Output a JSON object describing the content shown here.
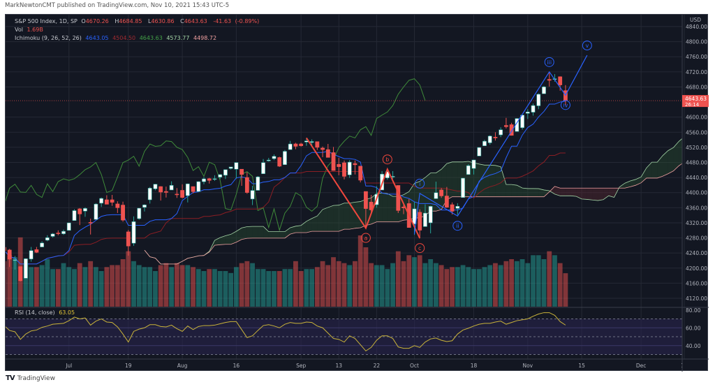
{
  "published": "MarkNewtonCMT published on TradingView.com, Nov 10, 2021 15:43 UTC-5",
  "header": {
    "symbol": "S&P 500 Index, 1D, SP",
    "o_label": "O",
    "o": "4670.26",
    "h_label": "H",
    "h": "4684.85",
    "l_label": "L",
    "l": "4630.86",
    "c_label": "C",
    "c": "4643.63",
    "change": "-41.63",
    "change_pct": "(-0.89%)",
    "vol_label": "Vol",
    "vol": "1.69B",
    "ichimoku_label": "Ichimoku (9, 26, 52, 26)",
    "ichimoku_values": [
      "4643.05",
      "4504.50",
      "4643.63",
      "4573.77",
      "4498.72"
    ],
    "rsi_label": "RSI (14, close)",
    "rsi_value": "63.05"
  },
  "colors": {
    "background": "#131722",
    "up": "#ffffff",
    "up_border": "#26a69a",
    "down": "#ef5350",
    "vol_up": "#26a69a",
    "vol_down": "#ef5350",
    "tenkan": "#2962ff",
    "kijun": "#8b1e24",
    "chikou": "#3f8a3a",
    "span_a": "#a5d6a7",
    "span_b": "#f0a0a0",
    "rsi": "#c9b33a",
    "wave_abc": "#f0473d",
    "wave_impulse": "#2962ff"
  },
  "price_axis": {
    "currency": "USD",
    "ticks": [
      "4840.00",
      "4800.00",
      "4760.00",
      "4720.00",
      "4680.00",
      "4600.00",
      "4560.00",
      "4520.00",
      "4480.00",
      "4440.00",
      "4400.00",
      "4360.00",
      "4320.00",
      "4280.00",
      "4240.00",
      "4200.00",
      "4160.00",
      "4120.00"
    ],
    "last_price": "4643.63",
    "countdown": "26:14"
  },
  "rsi_axis": {
    "ticks": [
      "80.00",
      "60.00",
      "40.00"
    ],
    "bands": [
      70,
      50,
      30
    ]
  },
  "time_axis": [
    {
      "label": "Jul",
      "index": 12
    },
    {
      "label": "19",
      "index": 23
    },
    {
      "label": "Aug",
      "index": 33
    },
    {
      "label": "16",
      "index": 43
    },
    {
      "label": "Sep",
      "index": 55
    },
    {
      "label": "13",
      "index": 62
    },
    {
      "label": "22",
      "index": 69
    },
    {
      "label": "Oct",
      "index": 76
    },
    {
      "label": "18",
      "index": 87
    },
    {
      "label": "Nov",
      "index": 97
    },
    {
      "label": "15",
      "index": 107
    },
    {
      "label": "Dec",
      "index": 118
    },
    {
      "label": "13",
      "index": 126
    }
  ],
  "chart_data": {
    "type": "candlestick",
    "title": "S&P 500 Index, 1D, SP",
    "ylim": [
      4100,
      4860
    ],
    "columns": [
      "date",
      "open",
      "high",
      "low",
      "close"
    ],
    "candles": [
      [
        "Jun 15",
        4255,
        4257,
        4238,
        4246.6
      ],
      [
        "Jun 16",
        4248,
        4251,
        4203,
        4223.7
      ],
      [
        "Jun 17",
        4220,
        4232,
        4196,
        4221.9
      ],
      [
        "Jun 18",
        4204,
        4204,
        4165,
        4166.5
      ],
      [
        "Jun 21",
        4173,
        4226,
        4173,
        4224.8
      ],
      [
        "Jun 22",
        4224,
        4256,
        4217,
        4246.4
      ],
      [
        "Jun 23",
        4249,
        4256,
        4240,
        4241.8
      ],
      [
        "Jun 24",
        4256,
        4271,
        4256,
        4266.5
      ],
      [
        "Jun 25",
        4274,
        4287,
        4271,
        4280.7
      ],
      [
        "Jun 28",
        4284,
        4293,
        4281,
        4290.6
      ],
      [
        "Jun 29",
        4293,
        4300,
        4287,
        4291.8
      ],
      [
        "Jun 30",
        4291,
        4302,
        4288,
        4297.5
      ],
      [
        "Jul 1",
        4300,
        4320,
        4300,
        4319.9
      ],
      [
        "Jul 2",
        4326,
        4356,
        4326,
        4352.3
      ],
      [
        "Jul 6",
        4357,
        4359,
        4314,
        4343.5
      ],
      [
        "Jul 7",
        4351,
        4361,
        4336,
        4358.1
      ],
      [
        "Jul 8",
        4321,
        4331,
        4289,
        4320.8
      ],
      [
        "Jul 9",
        4329,
        4372,
        4329,
        4369.6
      ],
      [
        "Jul 12",
        4372,
        4387,
        4362,
        4384.6
      ],
      [
        "Jul 13",
        4381,
        4393,
        4369,
        4369.2
      ],
      [
        "Jul 14",
        4381,
        4394,
        4365,
        4374.3
      ],
      [
        "Jul 15",
        4370,
        4377,
        4346,
        4360.0
      ],
      [
        "Jul 16",
        4367,
        4376,
        4323,
        4327.2
      ],
      [
        "Jul 19",
        4296,
        4301,
        4233,
        4258.5
      ],
      [
        "Jul 20",
        4266,
        4337,
        4259,
        4323.1
      ],
      [
        "Jul 21",
        4331,
        4359,
        4328,
        4358.7
      ],
      [
        "Jul 22",
        4361,
        4369,
        4350,
        4367.5
      ],
      [
        "Jul 23",
        4381,
        4415,
        4371,
        4411.8
      ],
      [
        "Jul 26",
        4410,
        4423,
        4406,
        4422.3
      ],
      [
        "Jul 27",
        4416,
        4417,
        4379,
        4401.5
      ],
      [
        "Jul 28",
        4403,
        4416,
        4387,
        4400.6
      ],
      [
        "Jul 29",
        4407,
        4430,
        4407,
        4419.2
      ],
      [
        "Jul 30",
        4396,
        4412,
        4386,
        4395.3
      ],
      [
        "Aug 2",
        4406,
        4422,
        4385,
        4387.2
      ],
      [
        "Aug 3",
        4392,
        4424,
        4374,
        4423.2
      ],
      [
        "Aug 4",
        4416,
        4416,
        4398,
        4402.7
      ],
      [
        "Aug 5",
        4403,
        4430,
        4403,
        4429.1
      ],
      [
        "Aug 6",
        4429,
        4441,
        4422,
        4436.5
      ],
      [
        "Aug 9",
        4437,
        4439,
        4424,
        4432.4
      ],
      [
        "Aug 10",
        4435,
        4446,
        4431,
        4436.8
      ],
      [
        "Aug 11",
        4441,
        4449,
        4436,
        4447.7
      ],
      [
        "Aug 12",
        4446,
        4461,
        4436,
        4460.8
      ],
      [
        "Aug 13",
        4464,
        4468,
        4461,
        4468.0
      ],
      [
        "Aug 16",
        4462,
        4480,
        4437,
        4479.7
      ],
      [
        "Aug 17",
        4462,
        4462,
        4418,
        4448.1
      ],
      [
        "Aug 18",
        4440,
        4454,
        4397,
        4400.3
      ],
      [
        "Aug 19",
        4383,
        4418,
        4367,
        4405.8
      ],
      [
        "Aug 20",
        4406,
        4444,
        4406,
        4441.7
      ],
      [
        "Aug 23",
        4450,
        4489,
        4450,
        4479.5
      ],
      [
        "Aug 24",
        4484,
        4492,
        4482,
        4486.2
      ],
      [
        "Aug 25",
        4490,
        4501,
        4486,
        4496.2
      ],
      [
        "Aug 26",
        4493,
        4495,
        4468,
        4470.0
      ],
      [
        "Aug 27",
        4474,
        4513,
        4474,
        4509.4
      ],
      [
        "Aug 30",
        4514,
        4537,
        4514,
        4528.8
      ],
      [
        "Aug 31",
        4529,
        4532,
        4515,
        4522.7
      ],
      [
        "Sep 1",
        4529,
        4532,
        4522,
        4524.1
      ],
      [
        "Sep 2",
        4534,
        4545,
        4524,
        4537.0
      ],
      [
        "Sep 3",
        4533,
        4541,
        4525,
        4535.4
      ],
      [
        "Sep 7",
        4535,
        4535,
        4513,
        4520.0
      ],
      [
        "Sep 8",
        4518,
        4522,
        4494,
        4514.1
      ],
      [
        "Sep 9",
        4514,
        4529,
        4493,
        4493.3
      ],
      [
        "Sep 10",
        4506,
        4521,
        4458,
        4458.6
      ],
      [
        "Sep 13",
        4475,
        4492,
        4446,
        4468.7
      ],
      [
        "Sep 14",
        4479,
        4485,
        4435,
        4443.1
      ],
      [
        "Sep 15",
        4447,
        4486,
        4439,
        4480.7
      ],
      [
        "Sep 16",
        4477,
        4485,
        4448,
        4473.8
      ],
      [
        "Sep 17",
        4470,
        4471,
        4427,
        4433.0
      ],
      [
        "Sep 20",
        4403,
        4403,
        4306,
        4357.7
      ],
      [
        "Sep 21",
        4375,
        4394,
        4348,
        4354.2
      ],
      [
        "Sep 22",
        4368,
        4417,
        4360,
        4395.6
      ],
      [
        "Sep 23",
        4407,
        4457,
        4407,
        4449.0
      ],
      [
        "Sep 24",
        4439,
        4463,
        4434,
        4455.5
      ],
      [
        "Sep 27",
        4442,
        4457,
        4437,
        4443.1
      ],
      [
        "Sep 28",
        4419,
        4419,
        4346,
        4352.6
      ],
      [
        "Sep 29",
        4362,
        4370,
        4343,
        4359.5
      ],
      [
        "Sep 30",
        4371,
        4383,
        4307,
        4307.5
      ],
      [
        "Oct 1",
        4317,
        4375,
        4288,
        4357.0
      ],
      [
        "Oct 4",
        4348,
        4356,
        4279,
        4300.5
      ],
      [
        "Oct 5",
        4310,
        4369,
        4310,
        4345.7
      ],
      [
        "Oct 6",
        4320,
        4365,
        4292,
        4363.6
      ],
      [
        "Oct 7",
        4384,
        4429,
        4384,
        4399.8
      ],
      [
        "Oct 8",
        4407,
        4412,
        4386,
        4391.3
      ],
      [
        "Oct 11",
        4391,
        4415,
        4360,
        4361.2
      ],
      [
        "Oct 12",
        4368,
        4374,
        4342,
        4350.7
      ],
      [
        "Oct 13",
        4358,
        4372,
        4341,
        4363.8
      ],
      [
        "Oct 14",
        4387,
        4439,
        4387,
        4438.3
      ],
      [
        "Oct 15",
        4448,
        4475,
        4448,
        4471.4
      ],
      [
        "Oct 18",
        4464,
        4487,
        4448,
        4486.5
      ],
      [
        "Oct 19",
        4497,
        4520,
        4497,
        4519.6
      ],
      [
        "Oct 20",
        4524,
        4540,
        4524,
        4536.2
      ],
      [
        "Oct 21",
        4532,
        4552,
        4527,
        4549.8
      ],
      [
        "Oct 22",
        4547,
        4560,
        4538,
        4544.9
      ],
      [
        "Oct 25",
        4553,
        4573,
        4547,
        4566.5
      ],
      [
        "Oct 26",
        4578,
        4598,
        4570,
        4574.8
      ],
      [
        "Oct 27",
        4580,
        4585,
        4551,
        4551.7
      ],
      [
        "Oct 28",
        4562,
        4597,
        4562,
        4596.4
      ],
      [
        "Oct 29",
        4572,
        4608,
        4567,
        4605.4
      ],
      [
        "Nov 1",
        4610,
        4621,
        4595,
        4613.7
      ],
      [
        "Nov 2",
        4613,
        4636,
        4604,
        4630.7
      ],
      [
        "Nov 3",
        4630,
        4663,
        4621,
        4660.6
      ],
      [
        "Nov 4",
        4662,
        4683,
        4662,
        4680.1
      ],
      [
        "Nov 5",
        4700,
        4718,
        4681,
        4697.5
      ],
      [
        "Nov 8",
        4701,
        4714,
        4694,
        4701.7
      ],
      [
        "Nov 9",
        4707,
        4708,
        4670,
        4685.3
      ],
      [
        "Nov 10",
        4670.26,
        4684.85,
        4630.86,
        4643.63
      ]
    ],
    "volume_billions": [
      2.3,
      2.6,
      2.5,
      3.5,
      2.2,
      2.0,
      2.0,
      2.1,
      2.4,
      1.9,
      1.9,
      2.2,
      2.0,
      1.9,
      2.2,
      2.0,
      2.3,
      2.0,
      1.8,
      2.0,
      2.1,
      2.1,
      2.4,
      2.8,
      2.3,
      2.1,
      2.0,
      2.0,
      1.8,
      2.1,
      2.2,
      2.0,
      2.2,
      2.1,
      2.1,
      2.0,
      1.9,
      1.8,
      1.9,
      1.9,
      1.8,
      1.8,
      1.7,
      2.0,
      2.2,
      2.3,
      2.2,
      1.9,
      1.9,
      1.8,
      1.8,
      1.8,
      1.9,
      1.9,
      2.3,
      1.8,
      1.9,
      1.9,
      2.0,
      2.3,
      2.1,
      2.5,
      2.3,
      2.2,
      2.1,
      2.3,
      3.6,
      3.0,
      2.2,
      2.1,
      2.1,
      1.9,
      2.2,
      2.8,
      2.3,
      2.6,
      2.5,
      2.6,
      2.2,
      2.4,
      2.2,
      2.1,
      1.9,
      2.0,
      2.0,
      2.1,
      2.0,
      1.9,
      1.9,
      2.0,
      2.1,
      2.2,
      2.1,
      2.3,
      2.4,
      2.3,
      2.4,
      2.2,
      2.6,
      2.6,
      2.4,
      2.8,
      2.6,
      2.2,
      1.69
    ],
    "rsi": [
      62.5,
      57,
      55.5,
      47,
      53,
      56.5,
      57.5,
      60.5,
      62,
      64,
      64.5,
      65,
      68,
      72,
      70,
      71,
      63,
      67.5,
      70,
      66.5,
      66,
      61,
      53,
      44,
      56,
      58.5,
      60,
      63.5,
      63.5,
      61.5,
      61,
      63,
      59,
      56,
      62,
      58,
      61.5,
      62.5,
      62.5,
      63,
      64.5,
      66,
      67,
      67,
      58,
      49,
      51,
      57,
      62.5,
      63.5,
      62,
      60,
      64,
      66,
      65,
      65,
      66.5,
      66,
      62,
      60,
      54,
      48,
      47,
      44,
      51,
      48,
      41,
      34,
      38,
      46,
      51,
      51,
      48,
      38.5,
      37,
      37,
      40,
      38,
      44,
      47.5,
      48.5,
      46,
      44.5,
      45.5,
      53,
      57.5,
      59.5,
      62,
      64,
      65,
      65,
      66.5,
      67.5,
      64,
      66,
      68,
      69,
      70,
      73,
      75.5,
      77,
      77,
      74,
      67,
      63.05
    ],
    "ichimoku_params": [
      9,
      26,
      52,
      26
    ],
    "rsi_length": 14,
    "annotations": {
      "abc": [
        {
          "label": "",
          "index": 56,
          "price": 4545
        },
        {
          "label": "a",
          "index": 67,
          "price": 4306
        },
        {
          "label": "b",
          "index": 71,
          "price": 4462
        },
        {
          "label": "c",
          "index": 77,
          "price": 4279
        }
      ],
      "impulse": [
        {
          "label": "",
          "index": 76,
          "price": 4290
        },
        {
          "label": "i",
          "index": 77,
          "price": 4398
        },
        {
          "label": "ii",
          "index": 84,
          "price": 4338
        },
        {
          "label": "iii",
          "index": 101,
          "price": 4720
        },
        {
          "label": "iv",
          "index": 104,
          "price": 4658
        },
        {
          "label": "v",
          "index": 108,
          "price": 4764
        }
      ]
    }
  },
  "footer": {
    "brand": "TradingView",
    "logo": "TV"
  }
}
